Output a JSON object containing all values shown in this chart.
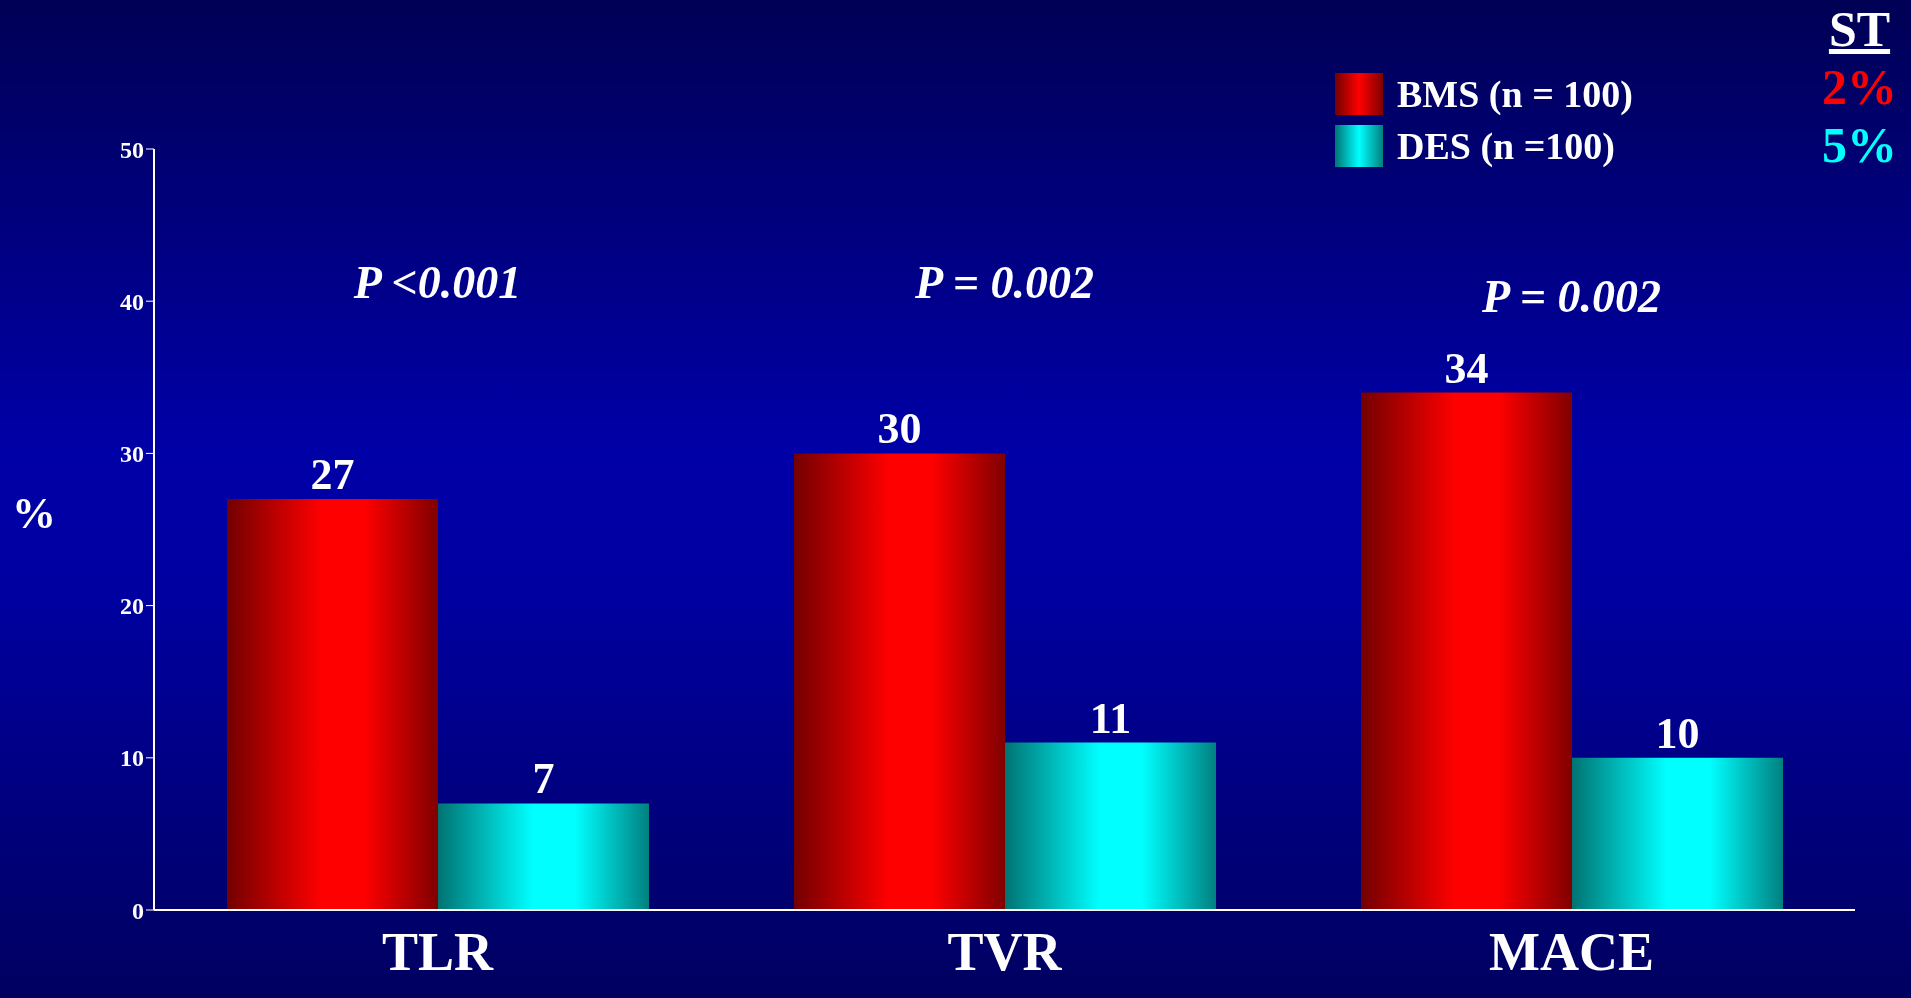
{
  "chart_data": {
    "type": "bar",
    "ylabel": "%",
    "categories": [
      "TLR",
      "TVR",
      "MACE"
    ],
    "series": [
      {
        "name": "BMS (n = 100)",
        "color": "#ff0000",
        "values": [
          27,
          30,
          34
        ]
      },
      {
        "name": "DES (n =100)",
        "color": "#00ffff",
        "values": [
          7,
          11,
          10
        ]
      }
    ],
    "ylim": [
      0,
      50
    ],
    "yticks": [
      0,
      10,
      20,
      30,
      40,
      50
    ],
    "data_labels": true,
    "legend": "top right",
    "annotations": [
      "P <0.001",
      "P = 0.002",
      "P = 0.002",
      "ST",
      "2%",
      "5%"
    ]
  }
}
